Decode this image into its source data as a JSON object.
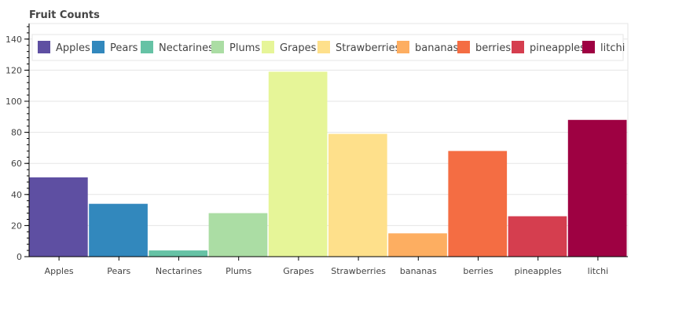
{
  "chart_data": {
    "type": "bar",
    "title": "Fruit Counts",
    "categories": [
      "Apples",
      "Pears",
      "Nectarines",
      "Plums",
      "Grapes",
      "Strawberries",
      "bananas",
      "berries",
      "pineapples",
      "litchi"
    ],
    "values": [
      51,
      34,
      4,
      28,
      119,
      79,
      15,
      68,
      26,
      88
    ],
    "colors": [
      "#5e4fa2",
      "#3288bd",
      "#66c2a5",
      "#abdda4",
      "#e6f598",
      "#fee08b",
      "#fdae61",
      "#f46d43",
      "#d53e4f",
      "#9e0142"
    ],
    "ylim": [
      0,
      150
    ],
    "yticks": [
      "0",
      "20",
      "40",
      "60",
      "80",
      "100",
      "120",
      "140"
    ],
    "grid": true,
    "legend": {
      "placement": "top-left",
      "orientation": "horizontal",
      "entries": [
        "Apples",
        "Pears",
        "Nectarines",
        "Plums",
        "Grapes",
        "Strawberries",
        "bananas",
        "berries",
        "pineapples",
        "litchi"
      ]
    }
  }
}
